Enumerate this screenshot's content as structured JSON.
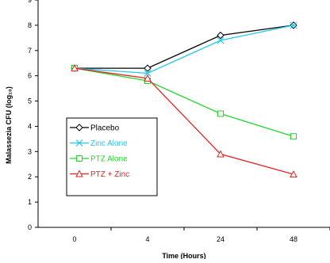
{
  "chart_data": {
    "type": "line",
    "title": "",
    "xlabel": "Time (Hours)",
    "ylabel": "Malassezia  CFU (log₁₀)",
    "categories": [
      "0",
      "4",
      "24",
      "48"
    ],
    "ylim": [
      0,
      9
    ],
    "yticks": [
      0,
      1,
      2,
      3,
      4,
      5,
      6,
      7,
      8,
      9
    ],
    "grid": false,
    "legend_position": "left",
    "series": [
      {
        "name": "Placebo",
        "values": [
          6.3,
          6.3,
          7.6,
          8.0
        ],
        "color": "#000000",
        "marker": "diamond"
      },
      {
        "name": "Zinc Alone",
        "values": [
          6.3,
          6.1,
          7.4,
          8.0
        ],
        "color": "#22c7f0",
        "marker": "x"
      },
      {
        "name": "PTZ Alone",
        "values": [
          6.3,
          5.8,
          4.5,
          3.6
        ],
        "color": "#22d62a",
        "marker": "square"
      },
      {
        "name": "PTZ + Zinc",
        "values": [
          6.3,
          5.9,
          2.9,
          2.1
        ],
        "color": "#e62222",
        "marker": "triangle"
      }
    ]
  }
}
